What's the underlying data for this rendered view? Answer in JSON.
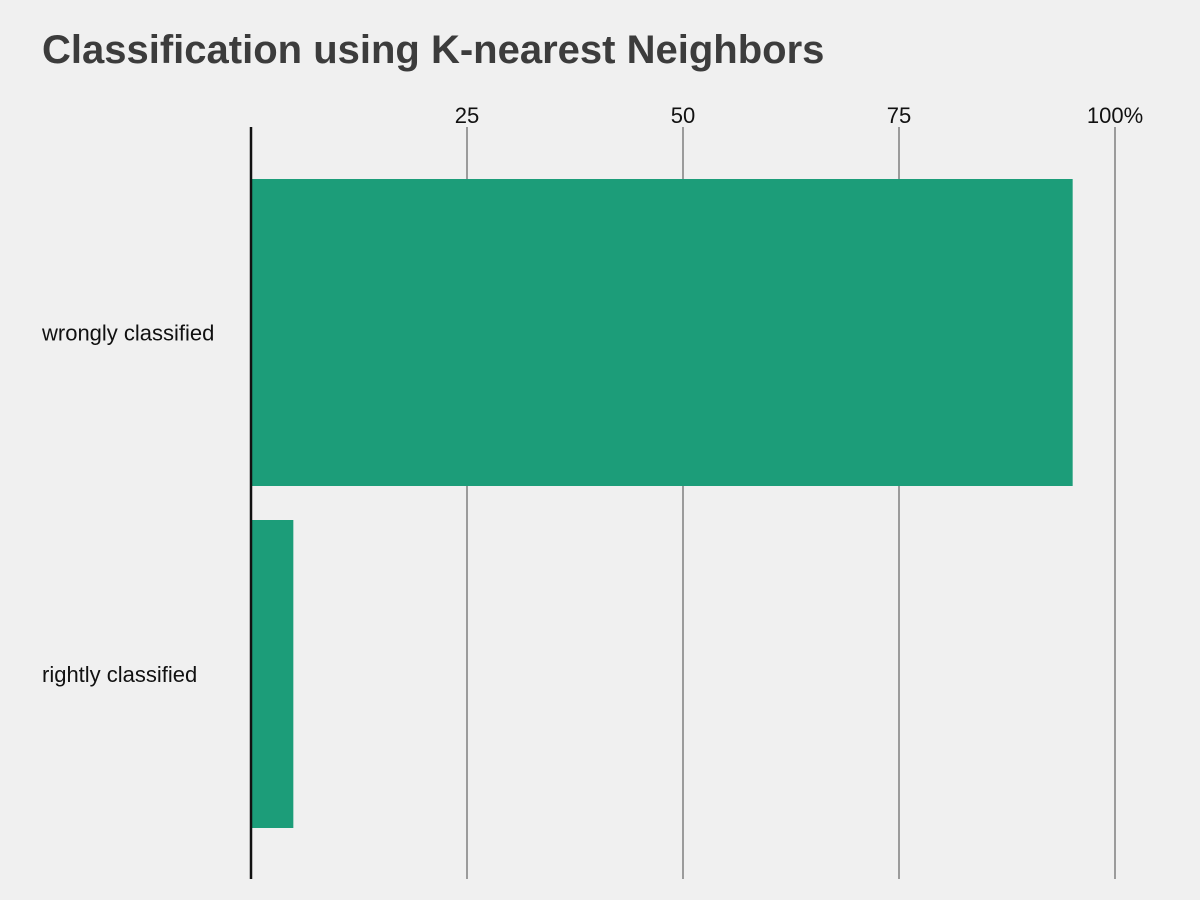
{
  "chart_data": {
    "type": "bar",
    "orientation": "horizontal",
    "title": "Classification using K-nearest Neighbors",
    "categories": [
      "wrongly classified",
      "rightly classified"
    ],
    "values": [
      95.1,
      4.9
    ],
    "xlim": [
      0,
      100
    ],
    "xticks": [
      25,
      50,
      75,
      100
    ],
    "xtick_labels": [
      "25",
      "50",
      "75",
      "100%"
    ],
    "xlabel": "",
    "ylabel": "",
    "grid": true,
    "legend": "none",
    "colors": {
      "bar": "#1c9d79",
      "grid": "#7f7f7f",
      "axis": "#111111",
      "background": "#f0f0f0",
      "title": "#3c3c3c"
    }
  }
}
